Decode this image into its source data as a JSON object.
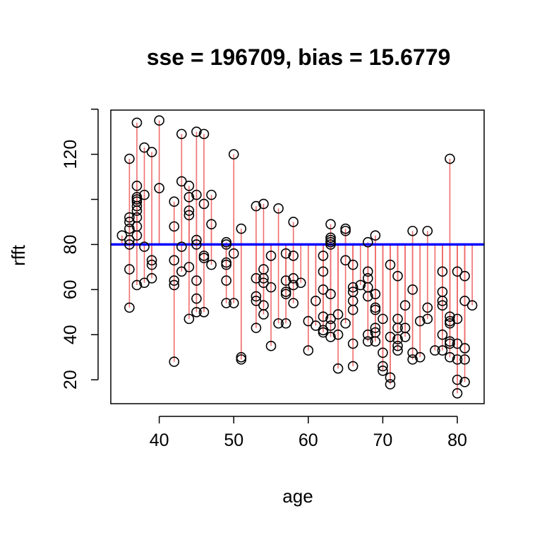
{
  "chart_data": {
    "type": "scatter",
    "title": "sse = 196709, bias = 15.6779",
    "xlabel": "age",
    "ylabel": "rfft",
    "xlim": [
      33.5,
      83.6
    ],
    "ylim": [
      9.4,
      139.6
    ],
    "xticks": [
      40,
      50,
      60,
      70,
      80
    ],
    "yticks": [
      20,
      40,
      60,
      80,
      100,
      120,
      140
    ],
    "ytick_labels_shown": [
      20,
      40,
      60,
      80,
      120
    ],
    "grid": false,
    "legend": "none",
    "reference_line": {
      "y": 80,
      "color": "#0000ff"
    },
    "residual_color": "#f06e6e",
    "point_color": "#000000",
    "points": [
      [
        35,
        84
      ],
      [
        36,
        82
      ],
      [
        36,
        80
      ],
      [
        36,
        87
      ],
      [
        36,
        90
      ],
      [
        36,
        92
      ],
      [
        36,
        118
      ],
      [
        36,
        69
      ],
      [
        36,
        52
      ],
      [
        37,
        92
      ],
      [
        37,
        95
      ],
      [
        37,
        97
      ],
      [
        37,
        99
      ],
      [
        37,
        100
      ],
      [
        37,
        101
      ],
      [
        37,
        106
      ],
      [
        37,
        88
      ],
      [
        37,
        84
      ],
      [
        37,
        62
      ],
      [
        37,
        134
      ],
      [
        38,
        102
      ],
      [
        38,
        79
      ],
      [
        38,
        63
      ],
      [
        38,
        123
      ],
      [
        39,
        121
      ],
      [
        39,
        73
      ],
      [
        39,
        71
      ],
      [
        39,
        65
      ],
      [
        40,
        105
      ],
      [
        40,
        135
      ],
      [
        42,
        99
      ],
      [
        42,
        88
      ],
      [
        42,
        73
      ],
      [
        42,
        64
      ],
      [
        42,
        62
      ],
      [
        42,
        28
      ],
      [
        43,
        129
      ],
      [
        43,
        108
      ],
      [
        43,
        79
      ],
      [
        43,
        68
      ],
      [
        44,
        106
      ],
      [
        44,
        101
      ],
      [
        44,
        95
      ],
      [
        44,
        93
      ],
      [
        44,
        70
      ],
      [
        44,
        47
      ],
      [
        45,
        130
      ],
      [
        45,
        102
      ],
      [
        45,
        82
      ],
      [
        45,
        80
      ],
      [
        45,
        64
      ],
      [
        45,
        56
      ],
      [
        45,
        50
      ],
      [
        46,
        129
      ],
      [
        46,
        98
      ],
      [
        46,
        75
      ],
      [
        46,
        74
      ],
      [
        46,
        50
      ],
      [
        47,
        102
      ],
      [
        47,
        89
      ],
      [
        47,
        71
      ],
      [
        49,
        81
      ],
      [
        49,
        80
      ],
      [
        49,
        72
      ],
      [
        49,
        71
      ],
      [
        49,
        64
      ],
      [
        49,
        54
      ],
      [
        50,
        120
      ],
      [
        50,
        76
      ],
      [
        50,
        54
      ],
      [
        51,
        87
      ],
      [
        51,
        30
      ],
      [
        51,
        29
      ],
      [
        53,
        97
      ],
      [
        53,
        65
      ],
      [
        53,
        57
      ],
      [
        53,
        55
      ],
      [
        53,
        43
      ],
      [
        54,
        98
      ],
      [
        54,
        69
      ],
      [
        54,
        65
      ],
      [
        54,
        63
      ],
      [
        54,
        53
      ],
      [
        54,
        49
      ],
      [
        55,
        75
      ],
      [
        55,
        61
      ],
      [
        55,
        35
      ],
      [
        56,
        96
      ],
      [
        56,
        45
      ],
      [
        57,
        76
      ],
      [
        57,
        64
      ],
      [
        57,
        59
      ],
      [
        57,
        58
      ],
      [
        57,
        45
      ],
      [
        58,
        90
      ],
      [
        58,
        75
      ],
      [
        58,
        65
      ],
      [
        58,
        62
      ],
      [
        58,
        54
      ],
      [
        59,
        63
      ],
      [
        60,
        46
      ],
      [
        60,
        33
      ],
      [
        61,
        55
      ],
      [
        61,
        44
      ],
      [
        62,
        75
      ],
      [
        62,
        68
      ],
      [
        62,
        60
      ],
      [
        62,
        48
      ],
      [
        62,
        42
      ],
      [
        62,
        41
      ],
      [
        63,
        89
      ],
      [
        63,
        83
      ],
      [
        63,
        82
      ],
      [
        63,
        81
      ],
      [
        63,
        80
      ],
      [
        63,
        58
      ],
      [
        63,
        47
      ],
      [
        63,
        44
      ],
      [
        63,
        39
      ],
      [
        64,
        49
      ],
      [
        64,
        40
      ],
      [
        64,
        25
      ],
      [
        65,
        87
      ],
      [
        65,
        86
      ],
      [
        65,
        73
      ],
      [
        65,
        45
      ],
      [
        66,
        71
      ],
      [
        66,
        61
      ],
      [
        66,
        59
      ],
      [
        66,
        55
      ],
      [
        66,
        51
      ],
      [
        66,
        36
      ],
      [
        66,
        26
      ],
      [
        67,
        62
      ],
      [
        68,
        81
      ],
      [
        68,
        68
      ],
      [
        68,
        65
      ],
      [
        68,
        61
      ],
      [
        68,
        57
      ],
      [
        68,
        40
      ],
      [
        68,
        37
      ],
      [
        69,
        84
      ],
      [
        69,
        58
      ],
      [
        69,
        52
      ],
      [
        69,
        51
      ],
      [
        69,
        43
      ],
      [
        69,
        41
      ],
      [
        69,
        37
      ],
      [
        70,
        47
      ],
      [
        70,
        32
      ],
      [
        70,
        26
      ],
      [
        70,
        24
      ],
      [
        71,
        71
      ],
      [
        71,
        39
      ],
      [
        71,
        21
      ],
      [
        71,
        18
      ],
      [
        72,
        66
      ],
      [
        72,
        47
      ],
      [
        72,
        43
      ],
      [
        72,
        38
      ],
      [
        72,
        35
      ],
      [
        72,
        33
      ],
      [
        73,
        53
      ],
      [
        73,
        43
      ],
      [
        73,
        39
      ],
      [
        74,
        86
      ],
      [
        74,
        60
      ],
      [
        74,
        32
      ],
      [
        74,
        29
      ],
      [
        75,
        46
      ],
      [
        75,
        30
      ],
      [
        76,
        86
      ],
      [
        76,
        52
      ],
      [
        76,
        47
      ],
      [
        77,
        33
      ],
      [
        78,
        68
      ],
      [
        78,
        59
      ],
      [
        78,
        55
      ],
      [
        78,
        53
      ],
      [
        78,
        40
      ],
      [
        78,
        33
      ],
      [
        79,
        118
      ],
      [
        79,
        48
      ],
      [
        79,
        46
      ],
      [
        79,
        45
      ],
      [
        79,
        37
      ],
      [
        79,
        36
      ],
      [
        79,
        30
      ],
      [
        80,
        68
      ],
      [
        80,
        47
      ],
      [
        80,
        36
      ],
      [
        80,
        29
      ],
      [
        80,
        20
      ],
      [
        80,
        14
      ],
      [
        81,
        66
      ],
      [
        81,
        55
      ],
      [
        81,
        34
      ],
      [
        81,
        29
      ],
      [
        81,
        19
      ],
      [
        82,
        53
      ]
    ]
  }
}
